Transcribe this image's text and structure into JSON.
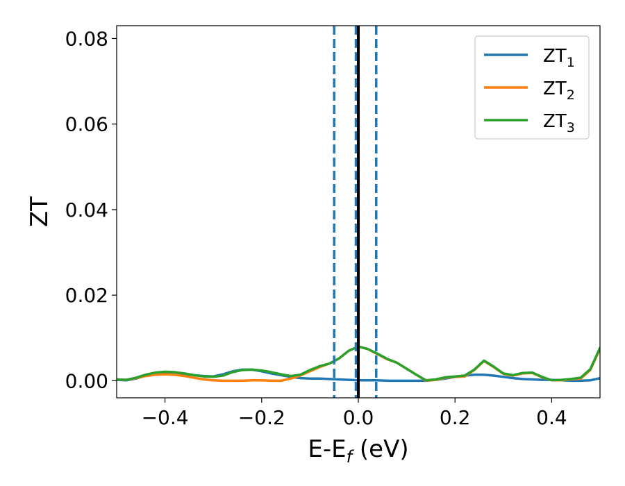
{
  "chart_data": {
    "type": "line",
    "title": "",
    "xlabel": "E-E",
    "xlabel_sub": "f",
    "xlabel_unit": " (eV)",
    "ylabel": "ZT",
    "xlim": [
      -0.5,
      0.5
    ],
    "ylim": [
      -0.004,
      0.083
    ],
    "xticks": [
      -0.4,
      -0.2,
      0.0,
      0.2,
      0.4
    ],
    "xtick_labels": [
      "−0.4",
      "−0.2",
      "0.0",
      "0.2",
      "0.4"
    ],
    "yticks": [
      0.0,
      0.02,
      0.04,
      0.06,
      0.08
    ],
    "ytick_labels": [
      "0.00",
      "0.02",
      "0.04",
      "0.06",
      "0.08"
    ],
    "grid": false,
    "legend_position": "top-right",
    "vertical_lines": [
      {
        "x": -0.05,
        "style": "dashed",
        "color": "#1f77b4"
      },
      {
        "x": 0.037,
        "style": "dashed",
        "color": "#1f77b4"
      },
      {
        "x": -0.005,
        "style": "dashed",
        "color": "#1f77b4"
      },
      {
        "x": 0.0,
        "style": "solid",
        "color": "#000000"
      }
    ],
    "series": [
      {
        "name": "ZT",
        "name_sub": "1",
        "color": "#1f77b4",
        "x": [
          -0.5,
          -0.48,
          -0.46,
          -0.44,
          -0.42,
          -0.4,
          -0.38,
          -0.36,
          -0.34,
          -0.32,
          -0.3,
          -0.28,
          -0.26,
          -0.24,
          -0.22,
          -0.2,
          -0.18,
          -0.16,
          -0.14,
          -0.12,
          -0.1,
          -0.08,
          -0.06,
          -0.04,
          -0.02,
          0.0,
          0.02,
          0.04,
          0.06,
          0.08,
          0.1,
          0.12,
          0.14,
          0.16,
          0.18,
          0.2,
          0.22,
          0.24,
          0.26,
          0.28,
          0.3,
          0.32,
          0.34,
          0.36,
          0.38,
          0.4,
          0.42,
          0.44,
          0.46,
          0.48,
          0.5
        ],
        "y": [
          0.0002,
          0.0001,
          0.0005,
          0.0012,
          0.0017,
          0.002,
          0.0019,
          0.0016,
          0.0013,
          0.0011,
          0.001,
          0.0015,
          0.0022,
          0.0026,
          0.0026,
          0.0022,
          0.0017,
          0.0013,
          0.0009,
          0.0006,
          0.0005,
          0.0005,
          0.0004,
          0.0003,
          0.0002,
          0.0001,
          0.0001,
          0.0001,
          0.0,
          0.0,
          0.0,
          0.0,
          0.0,
          0.0002,
          0.0005,
          0.0009,
          0.0012,
          0.0014,
          0.0014,
          0.0012,
          0.0009,
          0.0006,
          0.0004,
          0.0003,
          0.0002,
          0.0002,
          0.0001,
          0.0,
          0.0,
          0.0001,
          0.0006
        ]
      },
      {
        "name": "ZT",
        "name_sub": "2",
        "color": "#ff7f0e",
        "x": [
          -0.5,
          -0.48,
          -0.46,
          -0.44,
          -0.42,
          -0.4,
          -0.38,
          -0.36,
          -0.34,
          -0.32,
          -0.3,
          -0.28,
          -0.26,
          -0.24,
          -0.22,
          -0.2,
          -0.18,
          -0.16,
          -0.14,
          -0.12,
          -0.1,
          -0.08,
          -0.06,
          -0.04,
          -0.02,
          0.0,
          0.02,
          0.04,
          0.06,
          0.08,
          0.1,
          0.12,
          0.14,
          0.16,
          0.18,
          0.2,
          0.22,
          0.24,
          0.26,
          0.28,
          0.3,
          0.32,
          0.34,
          0.36,
          0.38,
          0.4,
          0.42,
          0.44,
          0.46,
          0.48,
          0.5
        ],
        "y": [
          0.0003,
          0.0002,
          0.0006,
          0.0011,
          0.0014,
          0.0015,
          0.0014,
          0.0011,
          0.0007,
          0.0003,
          0.0001,
          0.0,
          0.0,
          0.0,
          0.0001,
          0.0001,
          0.0,
          0.0,
          0.0005,
          0.0012,
          0.0022,
          0.0032,
          0.004,
          0.0052,
          0.007,
          0.008,
          0.0074,
          0.0062,
          0.005,
          0.0042,
          0.0028,
          0.0014,
          0.0,
          0.0002,
          0.0007,
          0.0009,
          0.001,
          0.0025,
          0.0046,
          0.0032,
          0.0016,
          0.0012,
          0.0017,
          0.0018,
          0.0008,
          0.0001,
          0.0001,
          0.0003,
          0.0005,
          0.0025,
          0.0075
        ]
      },
      {
        "name": "ZT",
        "name_sub": "3",
        "color": "#2ca02c",
        "x": [
          -0.5,
          -0.48,
          -0.46,
          -0.44,
          -0.42,
          -0.4,
          -0.38,
          -0.36,
          -0.34,
          -0.32,
          -0.3,
          -0.28,
          -0.26,
          -0.24,
          -0.22,
          -0.2,
          -0.18,
          -0.16,
          -0.14,
          -0.12,
          -0.1,
          -0.08,
          -0.06,
          -0.04,
          -0.02,
          0.0,
          0.02,
          0.04,
          0.06,
          0.08,
          0.1,
          0.12,
          0.14,
          0.16,
          0.18,
          0.2,
          0.22,
          0.24,
          0.26,
          0.28,
          0.3,
          0.32,
          0.34,
          0.36,
          0.38,
          0.4,
          0.42,
          0.44,
          0.46,
          0.48,
          0.5
        ],
        "y": [
          0.0003,
          0.0002,
          0.0007,
          0.0014,
          0.0019,
          0.0021,
          0.002,
          0.0017,
          0.0013,
          0.001,
          0.0009,
          0.0012,
          0.002,
          0.0025,
          0.0026,
          0.0024,
          0.002,
          0.0015,
          0.0011,
          0.0014,
          0.0025,
          0.0034,
          0.004,
          0.0052,
          0.007,
          0.008,
          0.0074,
          0.0063,
          0.0051,
          0.0042,
          0.0028,
          0.0014,
          0.0001,
          0.0003,
          0.0008,
          0.001,
          0.0012,
          0.0026,
          0.0047,
          0.0033,
          0.0017,
          0.0013,
          0.0018,
          0.0019,
          0.0009,
          0.0001,
          0.0002,
          0.0004,
          0.0007,
          0.0027,
          0.0077
        ]
      }
    ]
  }
}
